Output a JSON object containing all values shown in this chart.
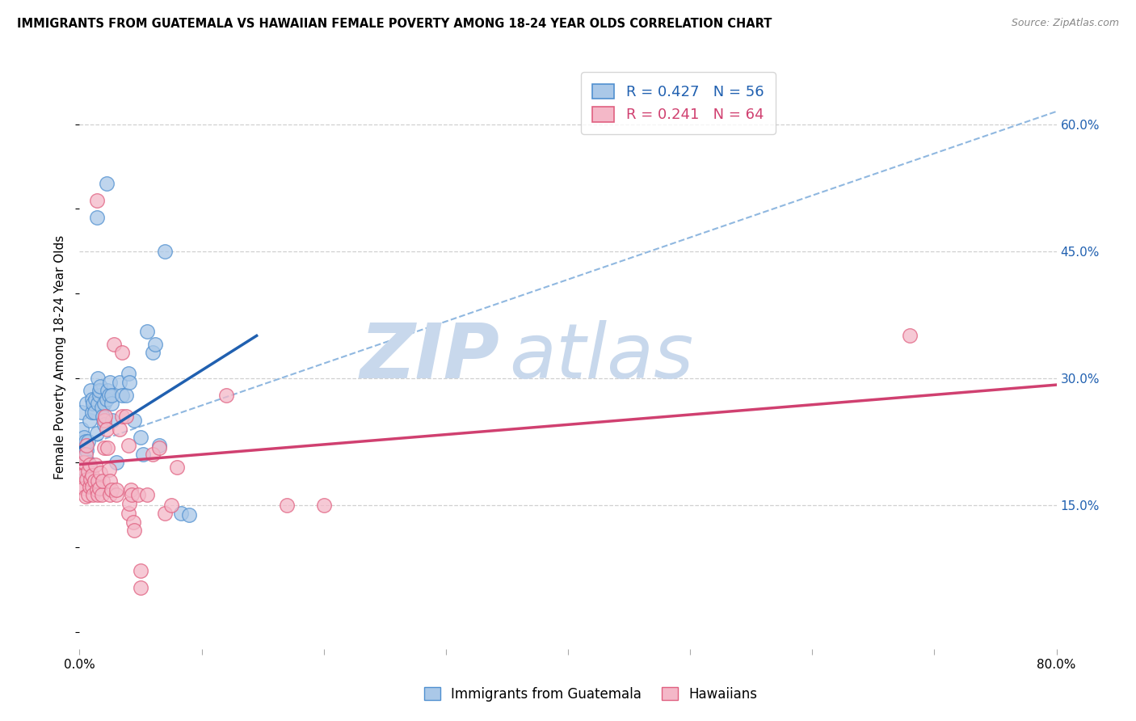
{
  "title": "IMMIGRANTS FROM GUATEMALA VS HAWAIIAN FEMALE POVERTY AMONG 18-24 YEAR OLDS CORRELATION CHART",
  "source": "Source: ZipAtlas.com",
  "ylabel": "Female Poverty Among 18-24 Year Olds",
  "legend_label1": "Immigrants from Guatemala",
  "legend_label2": "Hawaiians",
  "r1": "0.427",
  "n1": "56",
  "r2": "0.241",
  "n2": "64",
  "color_blue_fill": "#aac8e8",
  "color_pink_fill": "#f4b8c8",
  "color_blue_edge": "#5090d0",
  "color_pink_edge": "#e06080",
  "color_blue_line": "#2060b0",
  "color_pink_line": "#d04070",
  "color_dashed": "#90b8e0",
  "xlim": [
    0.0,
    0.8
  ],
  "ylim": [
    -0.02,
    0.67
  ],
  "xticks": [
    0.0,
    0.1,
    0.2,
    0.3,
    0.4,
    0.5,
    0.6,
    0.7,
    0.8
  ],
  "yticks_right": [
    0.15,
    0.3,
    0.45,
    0.6
  ],
  "ytick_right_labels": [
    "15.0%",
    "30.0%",
    "45.0%",
    "60.0%"
  ],
  "blue_scatter": [
    [
      0.001,
      0.21
    ],
    [
      0.002,
      0.24
    ],
    [
      0.002,
      0.26
    ],
    [
      0.003,
      0.195
    ],
    [
      0.003,
      0.22
    ],
    [
      0.004,
      0.205
    ],
    [
      0.004,
      0.23
    ],
    [
      0.005,
      0.185
    ],
    [
      0.005,
      0.225
    ],
    [
      0.006,
      0.215
    ],
    [
      0.006,
      0.27
    ],
    [
      0.007,
      0.2
    ],
    [
      0.007,
      0.225
    ],
    [
      0.008,
      0.25
    ],
    [
      0.008,
      0.195
    ],
    [
      0.009,
      0.285
    ],
    [
      0.01,
      0.26
    ],
    [
      0.01,
      0.275
    ],
    [
      0.011,
      0.27
    ],
    [
      0.012,
      0.26
    ],
    [
      0.013,
      0.275
    ],
    [
      0.014,
      0.235
    ],
    [
      0.015,
      0.27
    ],
    [
      0.015,
      0.3
    ],
    [
      0.016,
      0.28
    ],
    [
      0.016,
      0.285
    ],
    [
      0.017,
      0.29
    ],
    [
      0.018,
      0.265
    ],
    [
      0.019,
      0.255
    ],
    [
      0.02,
      0.27
    ],
    [
      0.02,
      0.245
    ],
    [
      0.022,
      0.275
    ],
    [
      0.023,
      0.285
    ],
    [
      0.024,
      0.28
    ],
    [
      0.025,
      0.295
    ],
    [
      0.026,
      0.27
    ],
    [
      0.026,
      0.28
    ],
    [
      0.027,
      0.25
    ],
    [
      0.03,
      0.2
    ],
    [
      0.033,
      0.295
    ],
    [
      0.035,
      0.28
    ],
    [
      0.038,
      0.28
    ],
    [
      0.04,
      0.305
    ],
    [
      0.041,
      0.295
    ],
    [
      0.045,
      0.25
    ],
    [
      0.05,
      0.23
    ],
    [
      0.052,
      0.21
    ],
    [
      0.055,
      0.355
    ],
    [
      0.06,
      0.33
    ],
    [
      0.062,
      0.34
    ],
    [
      0.065,
      0.22
    ],
    [
      0.014,
      0.49
    ],
    [
      0.022,
      0.53
    ],
    [
      0.07,
      0.45
    ],
    [
      0.083,
      0.14
    ],
    [
      0.09,
      0.138
    ]
  ],
  "pink_scatter": [
    [
      0.001,
      0.195
    ],
    [
      0.002,
      0.175
    ],
    [
      0.003,
      0.2
    ],
    [
      0.003,
      0.185
    ],
    [
      0.004,
      0.17
    ],
    [
      0.004,
      0.2
    ],
    [
      0.005,
      0.16
    ],
    [
      0.005,
      0.21
    ],
    [
      0.006,
      0.18
    ],
    [
      0.006,
      0.22
    ],
    [
      0.007,
      0.162
    ],
    [
      0.007,
      0.19
    ],
    [
      0.008,
      0.172
    ],
    [
      0.008,
      0.198
    ],
    [
      0.009,
      0.18
    ],
    [
      0.01,
      0.172
    ],
    [
      0.01,
      0.185
    ],
    [
      0.011,
      0.162
    ],
    [
      0.012,
      0.178
    ],
    [
      0.013,
      0.198
    ],
    [
      0.014,
      0.168
    ],
    [
      0.015,
      0.178
    ],
    [
      0.015,
      0.162
    ],
    [
      0.016,
      0.17
    ],
    [
      0.017,
      0.188
    ],
    [
      0.018,
      0.162
    ],
    [
      0.019,
      0.178
    ],
    [
      0.02,
      0.218
    ],
    [
      0.02,
      0.25
    ],
    [
      0.021,
      0.255
    ],
    [
      0.022,
      0.24
    ],
    [
      0.023,
      0.218
    ],
    [
      0.024,
      0.192
    ],
    [
      0.025,
      0.162
    ],
    [
      0.025,
      0.178
    ],
    [
      0.026,
      0.168
    ],
    [
      0.028,
      0.34
    ],
    [
      0.03,
      0.162
    ],
    [
      0.03,
      0.168
    ],
    [
      0.033,
      0.24
    ],
    [
      0.035,
      0.255
    ],
    [
      0.035,
      0.33
    ],
    [
      0.038,
      0.255
    ],
    [
      0.04,
      0.22
    ],
    [
      0.04,
      0.14
    ],
    [
      0.041,
      0.152
    ],
    [
      0.042,
      0.168
    ],
    [
      0.043,
      0.162
    ],
    [
      0.044,
      0.13
    ],
    [
      0.045,
      0.12
    ],
    [
      0.048,
      0.162
    ],
    [
      0.05,
      0.072
    ],
    [
      0.05,
      0.052
    ],
    [
      0.055,
      0.162
    ],
    [
      0.06,
      0.21
    ],
    [
      0.065,
      0.218
    ],
    [
      0.07,
      0.14
    ],
    [
      0.075,
      0.15
    ],
    [
      0.08,
      0.195
    ],
    [
      0.014,
      0.51
    ],
    [
      0.12,
      0.28
    ],
    [
      0.17,
      0.15
    ],
    [
      0.2,
      0.15
    ],
    [
      0.68,
      0.35
    ]
  ],
  "blue_line_x": [
    0.0,
    0.145
  ],
  "blue_line_y": [
    0.218,
    0.35
  ],
  "pink_line_x": [
    0.0,
    0.8
  ],
  "pink_line_y": [
    0.198,
    0.292
  ],
  "dashed_line_x": [
    0.0,
    0.8
  ],
  "dashed_line_y": [
    0.218,
    0.615
  ],
  "watermark_zip": "ZIP",
  "watermark_atlas": "atlas",
  "watermark_color": "#c8d8ec",
  "background_color": "#ffffff",
  "grid_color": "#d0d0d0",
  "marker_size": 160
}
